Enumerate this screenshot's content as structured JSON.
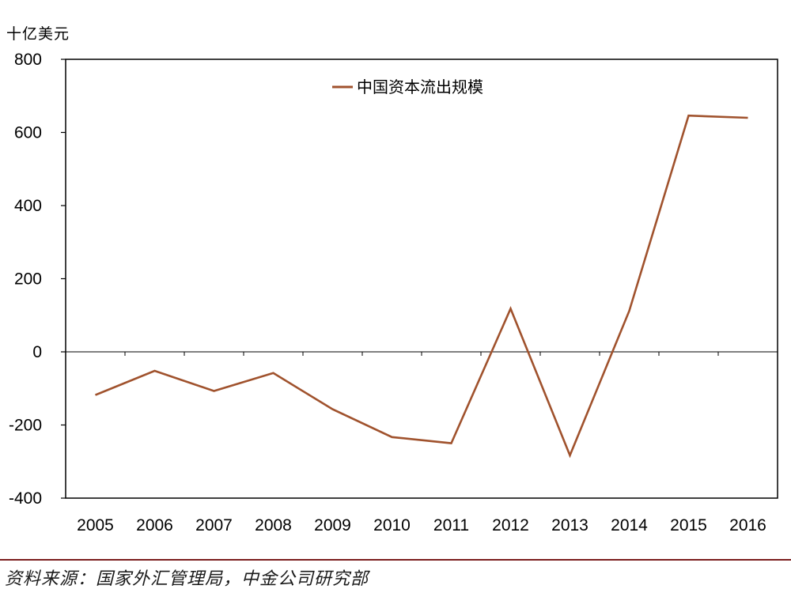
{
  "chart_data": {
    "type": "line",
    "unit_label": "十亿美元",
    "categories": [
      "2005",
      "2006",
      "2007",
      "2008",
      "2009",
      "2010",
      "2011",
      "2012",
      "2013",
      "2014",
      "2015",
      "2016"
    ],
    "series": [
      {
        "name": "中国资本流出规模",
        "values": [
          -118,
          -52,
          -107,
          -58,
          -157,
          -233,
          -250,
          118,
          -283,
          112,
          646,
          640
        ],
        "color": "#a0522d"
      }
    ],
    "ylim": [
      -400,
      800
    ],
    "yticks": [
      800,
      600,
      400,
      200,
      0,
      -200,
      -400
    ],
    "legend_position": "top-center",
    "grid": false
  },
  "footer": {
    "source": "资料来源：国家外汇管理局，中金公司研究部",
    "rule_color": "#7b1e1e"
  }
}
